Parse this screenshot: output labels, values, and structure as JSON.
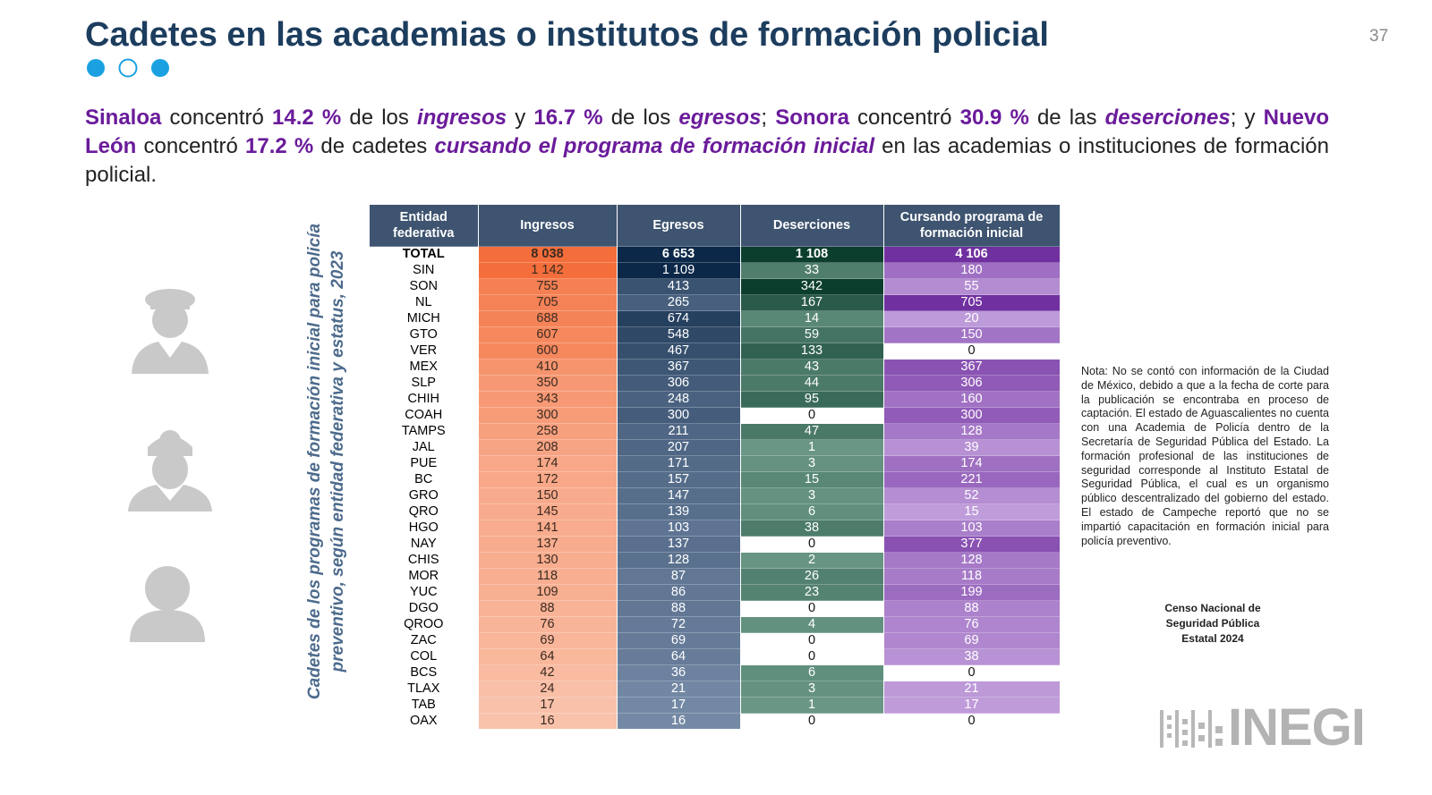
{
  "header": {
    "title": "Cadetes en las academias o institutos de formación policial",
    "page_number": "37"
  },
  "intro": [
    "Sinaloa",
    " concentró ",
    "14.2 %",
    " de los ",
    "ingresos",
    " y ",
    "16.7 %",
    " de los ",
    "egresos",
    "; ",
    "Sonora",
    " concentró ",
    "30.9 %",
    " de las ",
    "deserciones",
    "; y ",
    "Nuevo León",
    " concentró ",
    "17.2 %",
    " de cadetes ",
    "cursando el programa de formación inicial",
    " en las academias o instituciones de formación policial."
  ],
  "table": {
    "caption": [
      "Cadetes de los programas de formación inicial para policía",
      "preventivo, según entidad federativa y estatus, 2023"
    ],
    "columns": [
      "Entidad federativa",
      "Ingresos",
      "Egresos",
      "Deserciones",
      "Cursando programa de formación inicial"
    ],
    "rows": [
      [
        "TOTAL",
        "8 038",
        "6 653",
        "1 108",
        "4 106"
      ],
      [
        "SIN",
        "1 142",
        "1 109",
        "33",
        "180"
      ],
      [
        "SON",
        "755",
        "413",
        "342",
        "55"
      ],
      [
        "NL",
        "705",
        "265",
        "167",
        "705"
      ],
      [
        "MICH",
        "688",
        "674",
        "14",
        "20"
      ],
      [
        "GTO",
        "607",
        "548",
        "59",
        "150"
      ],
      [
        "VER",
        "600",
        "467",
        "133",
        "0"
      ],
      [
        "MEX",
        "410",
        "367",
        "43",
        "367"
      ],
      [
        "SLP",
        "350",
        "306",
        "44",
        "306"
      ],
      [
        "CHIH",
        "343",
        "248",
        "95",
        "160"
      ],
      [
        "COAH",
        "300",
        "300",
        "0",
        "300"
      ],
      [
        "TAMPS",
        "258",
        "211",
        "47",
        "128"
      ],
      [
        "JAL",
        "208",
        "207",
        "1",
        "39"
      ],
      [
        "PUE",
        "174",
        "171",
        "3",
        "174"
      ],
      [
        "BC",
        "172",
        "157",
        "15",
        "221"
      ],
      [
        "GRO",
        "150",
        "147",
        "3",
        "52"
      ],
      [
        "QRO",
        "145",
        "139",
        "6",
        "15"
      ],
      [
        "HGO",
        "141",
        "103",
        "38",
        "103"
      ],
      [
        "NAY",
        "137",
        "137",
        "0",
        "377"
      ],
      [
        "CHIS",
        "130",
        "128",
        "2",
        "128"
      ],
      [
        "MOR",
        "118",
        "87",
        "26",
        "118"
      ],
      [
        "YUC",
        "109",
        "86",
        "23",
        "199"
      ],
      [
        "DGO",
        "88",
        "88",
        "0",
        "88"
      ],
      [
        "QROO",
        "76",
        "72",
        "4",
        "76"
      ],
      [
        "ZAC",
        "69",
        "69",
        "0",
        "69"
      ],
      [
        "COL",
        "64",
        "64",
        "0",
        "38"
      ],
      [
        "BCS",
        "42",
        "36",
        "6",
        "0"
      ],
      [
        "TLAX",
        "24",
        "21",
        "3",
        "21"
      ],
      [
        "TAB",
        "17",
        "17",
        "1",
        "17"
      ],
      [
        "OAX",
        "16",
        "16",
        "0",
        "0"
      ]
    ]
  },
  "note": "Nota: No se contó con información de la Ciudad de México, debido a que a la fecha de corte para la publicación se encontraba en proceso de captación. El estado de Aguascalientes no cuenta con una Academia de Policía dentro de la Secretaría de Seguridad Pública del Estado. La formación profesional de las instituciones de seguridad corresponde al Instituto Estatal de Seguridad Pública, el cual es un organismo público descentralizado del gobierno del estado. El estado de Campeche reportó que no se impartió capacitación en formación inicial para policía preventivo.",
  "source": [
    "Censo Nacional de",
    "Seguridad Pública",
    "Estatal 2024"
  ],
  "logo": "INEGI"
}
